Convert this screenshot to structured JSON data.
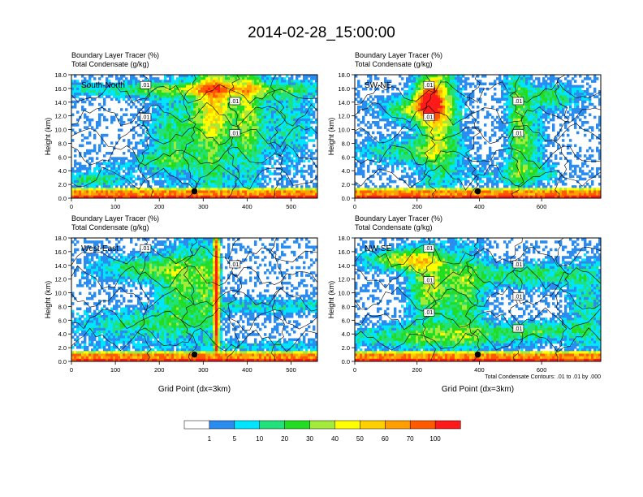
{
  "figure": {
    "title": "2014-02-28_15:00:00"
  },
  "colors": {
    "palette": [
      "#ffffff",
      "#2b8cf0",
      "#00e5ff",
      "#22e07a",
      "#22dd22",
      "#a3ea3a",
      "#ffff00",
      "#ffd000",
      "#ff9e00",
      "#ff5a00",
      "#ff1a1a"
    ],
    "contour": "#000000"
  },
  "chart_data": [
    {
      "type": "heatmap",
      "panel_label": "South-North",
      "subtitle_1": "Boundary Layer Tracer   (%)",
      "subtitle_2": "Total Condensate   (g/kg)",
      "ylabel": "Height (km)",
      "xlabel": "",
      "xlim": [
        0,
        560
      ],
      "ylim": [
        0,
        18
      ],
      "xticks": [
        "0",
        "100",
        "200",
        "300",
        "400",
        "500"
      ],
      "yticks": [
        "0.0",
        "2.0",
        "4.0",
        "6.0",
        "8.0",
        "10.0",
        "12.0",
        "14.0",
        "16.0",
        "18.0"
      ],
      "contour_labels": [
        ".01",
        ".01",
        ".01",
        ".01"
      ],
      "marker": {
        "x": 280,
        "y": 1.0
      }
    },
    {
      "type": "heatmap",
      "panel_label": "SW-NE",
      "subtitle_1": "Boundary Layer Tracer   (%)",
      "subtitle_2": "Total Condensate   (g/kg)",
      "ylabel": "Height (km)",
      "xlabel": "",
      "xlim": [
        0,
        790
      ],
      "ylim": [
        0,
        18
      ],
      "xticks": [
        "0",
        "200",
        "400",
        "600"
      ],
      "yticks": [
        "0.0",
        "2.0",
        "4.0",
        "6.0",
        "8.0",
        "10.0",
        "12.0",
        "14.0",
        "16.0",
        "18.0"
      ],
      "contour_labels": [
        ".01",
        ".01",
        ".01",
        ".01"
      ],
      "marker": {
        "x": 395,
        "y": 1.0
      }
    },
    {
      "type": "heatmap",
      "panel_label": "West-East",
      "subtitle_1": "Boundary Layer Tracer   (%)",
      "subtitle_2": "Total Condensate   (g/kg)",
      "ylabel": "Height (km)",
      "xlabel": "Grid Point (dx=3km)",
      "xlim": [
        0,
        560
      ],
      "ylim": [
        0,
        18
      ],
      "xticks": [
        "0",
        "100",
        "200",
        "300",
        "400",
        "500"
      ],
      "yticks": [
        "0.0",
        "2.0",
        "4.0",
        "6.0",
        "8.0",
        "10.0",
        "12.0",
        "14.0",
        "16.0",
        "18.0"
      ],
      "contour_labels": [
        ".01",
        ".01"
      ],
      "marker": {
        "x": 280,
        "y": 1.0
      }
    },
    {
      "type": "heatmap",
      "panel_label": "NW-SE",
      "subtitle_1": "Boundary Layer Tracer   (%)",
      "subtitle_2": "Total Condensate   (g/kg)",
      "ylabel": "Height (km)",
      "xlabel": "Grid Point (dx=3km)",
      "xlim": [
        0,
        790
      ],
      "ylim": [
        0,
        18
      ],
      "xticks": [
        "0",
        "200",
        "400",
        "600"
      ],
      "yticks": [
        "0.0",
        "2.0",
        "4.0",
        "6.0",
        "8.0",
        "10.0",
        "12.0",
        "14.0",
        "16.0",
        "18.0"
      ],
      "contour_labels": [
        ".01",
        ".01",
        ".01",
        ".01",
        ".01",
        ".01"
      ],
      "marker": {
        "x": 395,
        "y": 1.0
      },
      "contour_note": "Total Condensate Contours: .01 to .01 by .000"
    }
  ],
  "colorbar": {
    "levels": [
      "1",
      "5",
      "10",
      "20",
      "30",
      "40",
      "50",
      "60",
      "70",
      "100"
    ]
  }
}
